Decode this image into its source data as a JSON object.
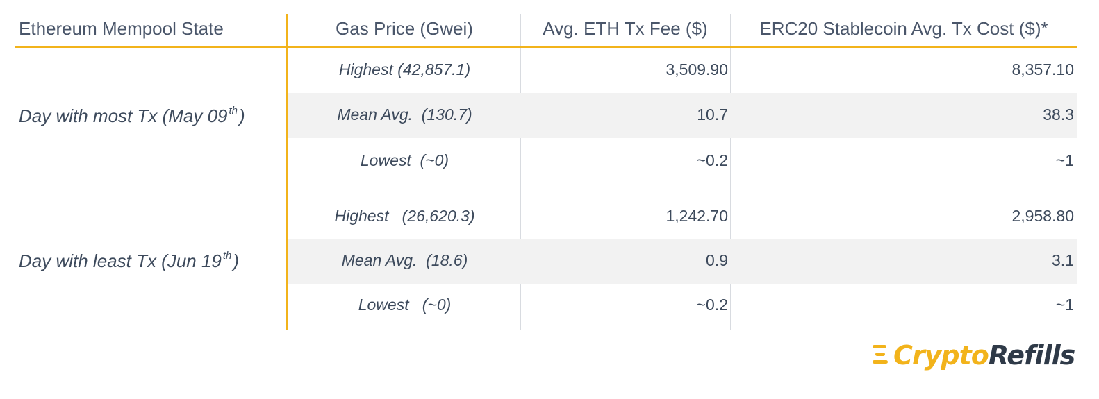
{
  "colors": {
    "accent": "#f2b31b",
    "text": "#3d4a5c",
    "row_shade": "#f2f2f2",
    "logo_dark": "#2f3a48"
  },
  "header": {
    "col1": "Ethereum Mempool State",
    "col2": "Gas Price (Gwei)",
    "col3": "Avg. ETH Tx Fee ($)",
    "col4": "ERC20 Stablecoin Avg. Tx Cost ($)*"
  },
  "groups": [
    {
      "label_pre": "Day with most Tx  (May 09",
      "label_sup": "th",
      "label_post": ")",
      "rows": [
        {
          "gas": "Highest (42,857.1)",
          "eth": "3,509.90",
          "erc": "8,357.10"
        },
        {
          "gas": "Mean Avg.  (130.7)",
          "eth": "10.7",
          "erc": "38.3"
        },
        {
          "gas": "Lowest  (~0)",
          "eth": "~0.2",
          "erc": "~1"
        }
      ]
    },
    {
      "label_pre": "Day with least Tx  (Jun 19",
      "label_sup": "th",
      "label_post": ")",
      "rows": [
        {
          "gas": "Highest   (26,620.3)",
          "eth": "1,242.70",
          "erc": "2,958.80"
        },
        {
          "gas": "Mean Avg.  (18.6)",
          "eth": "0.9",
          "erc": "3.1"
        },
        {
          "gas": "Lowest   (~0)",
          "eth": "~0.2",
          "erc": "~1"
        }
      ]
    }
  ],
  "logo": {
    "part1": "Crypto",
    "part2": "Refills",
    "icon": "speed-lines-icon"
  }
}
